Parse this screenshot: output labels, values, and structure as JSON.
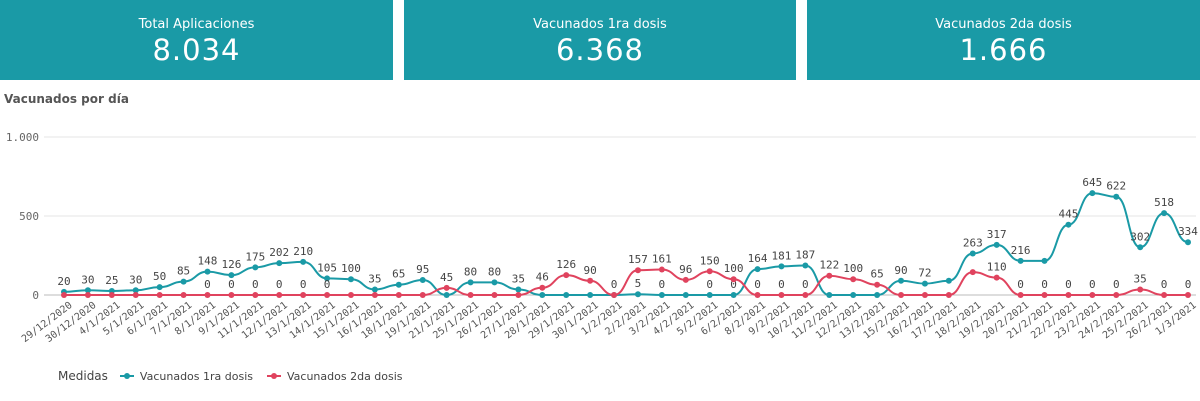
{
  "kpis": [
    {
      "label": "Total Aplicaciones",
      "value": "8.034"
    },
    {
      "label": "Vacunados 1ra dosis",
      "value": "6.368"
    },
    {
      "label": "Vacunados 2da dosis",
      "value": "1.666"
    }
  ],
  "chart_title": "Vacunados por día",
  "chart_data": {
    "type": "line",
    "ylim": [
      0,
      1000
    ],
    "yticks": [
      0,
      500,
      1000
    ],
    "ytick_labels": [
      "0",
      "500",
      "1.000"
    ],
    "grid": true,
    "legend_title": "Medidas",
    "legend_position": "bottom-left",
    "categories": [
      "29/12/2020",
      "30/12/2020",
      "4/1/2021",
      "5/1/2021",
      "6/1/2021",
      "7/1/2021",
      "8/1/2021",
      "9/1/2021",
      "11/1/2021",
      "12/1/2021",
      "13/1/2021",
      "14/1/2021",
      "15/1/2021",
      "16/1/2021",
      "18/1/2021",
      "19/1/2021",
      "21/1/2021",
      "25/1/2021",
      "26/1/2021",
      "27/1/2021",
      "28/1/2021",
      "29/1/2021",
      "30/1/2021",
      "1/2/2021",
      "2/2/2021",
      "3/2/2021",
      "4/2/2021",
      "5/2/2021",
      "6/2/2021",
      "8/2/2021",
      "9/2/2021",
      "10/2/2021",
      "11/2/2021",
      "12/2/2021",
      "13/2/2021",
      "15/2/2021",
      "16/2/2021",
      "17/2/2021",
      "18/2/2021",
      "19/2/2021",
      "20/2/2021",
      "21/2/2021",
      "22/2/2021",
      "23/2/2021",
      "24/2/2021",
      "25/2/2021",
      "26/2/2021",
      "1/3/2021"
    ],
    "series": [
      {
        "name": "Vacunados 1ra dosis",
        "color": "#1a9aa6",
        "values": [
          20,
          30,
          25,
          30,
          50,
          85,
          148,
          126,
          175,
          202,
          210,
          105,
          100,
          35,
          65,
          95,
          0,
          80,
          80,
          35,
          0,
          0,
          0,
          0,
          5,
          0,
          0,
          0,
          0,
          164,
          181,
          187,
          0,
          0,
          0,
          90,
          72,
          90,
          263,
          317,
          216,
          216,
          445,
          645,
          622,
          302,
          518,
          334
        ],
        "labels": [
          20,
          30,
          25,
          30,
          50,
          85,
          148,
          126,
          175,
          202,
          210,
          105,
          100,
          35,
          65,
          95,
          null,
          80,
          80,
          35,
          null,
          null,
          null,
          0,
          5,
          0,
          null,
          0,
          0,
          164,
          181,
          187,
          null,
          null,
          null,
          90,
          72,
          null,
          263,
          317,
          216,
          null,
          445,
          645,
          622,
          302,
          518,
          334
        ]
      },
      {
        "name": "Vacunados 2da dosis",
        "color": "#e0435e",
        "values": [
          0,
          0,
          0,
          0,
          0,
          0,
          0,
          0,
          0,
          0,
          0,
          0,
          0,
          0,
          0,
          0,
          45,
          0,
          0,
          0,
          46,
          126,
          90,
          0,
          157,
          161,
          96,
          150,
          100,
          0,
          0,
          0,
          122,
          100,
          65,
          0,
          0,
          0,
          145,
          110,
          0,
          0,
          0,
          0,
          0,
          35,
          0,
          0
        ],
        "labels": [
          null,
          null,
          null,
          null,
          null,
          null,
          0,
          0,
          0,
          0,
          0,
          0,
          null,
          null,
          null,
          null,
          45,
          null,
          null,
          null,
          46,
          126,
          90,
          null,
          157,
          161,
          96,
          150,
          100,
          0,
          0,
          0,
          122,
          100,
          65,
          null,
          null,
          null,
          null,
          110,
          0,
          0,
          0,
          0,
          0,
          35,
          0,
          0
        ]
      }
    ]
  }
}
